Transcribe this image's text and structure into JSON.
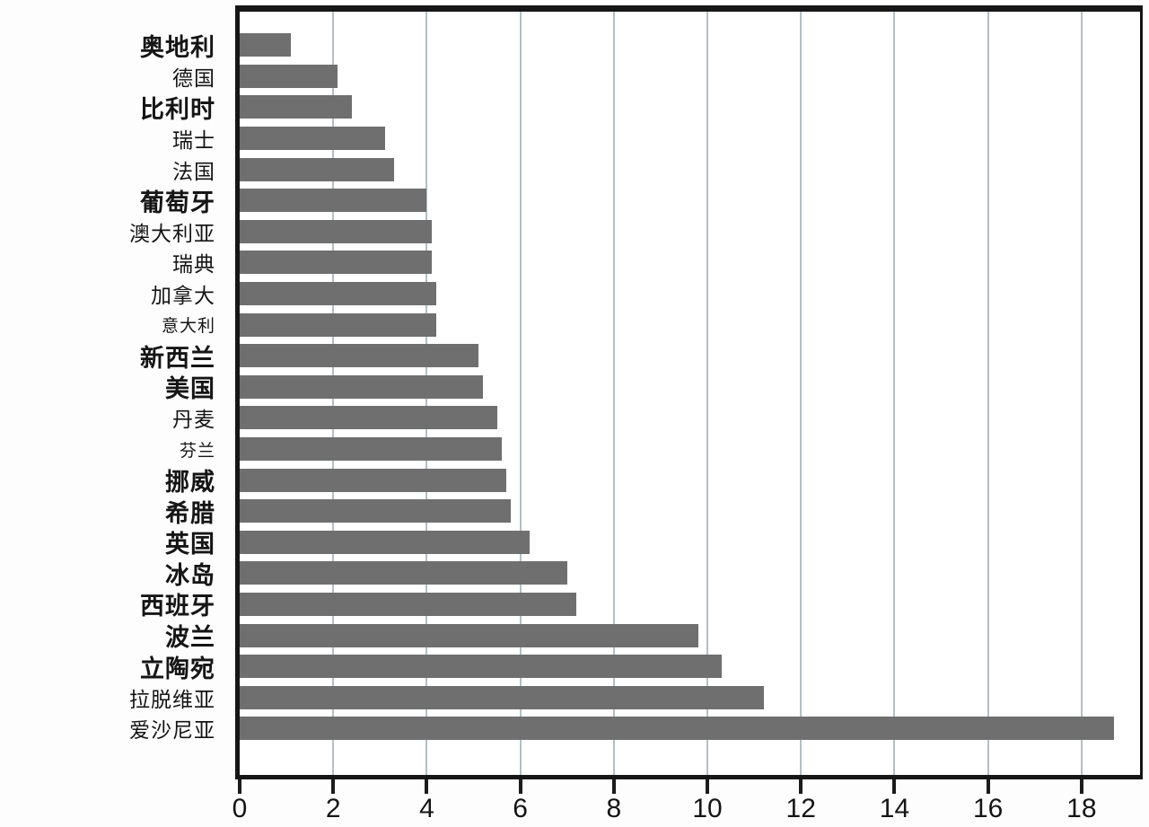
{
  "chart_data": {
    "type": "bar",
    "orientation": "horizontal",
    "title": "",
    "xlabel": "",
    "ylabel": "",
    "categories": [
      "奥地利",
      "德国",
      "比利时",
      "瑞士",
      "法国",
      "葡萄牙",
      "澳大利亚",
      "瑞典",
      "加拿大",
      "意大利",
      "新西兰",
      "美国",
      "丹麦",
      "芬兰",
      "挪威",
      "希腊",
      "英国",
      "冰岛",
      "西班牙",
      "波兰",
      "立陶宛",
      "拉脱维亚",
      "爱沙尼亚"
    ],
    "values": [
      1.1,
      2.1,
      2.4,
      3.1,
      3.3,
      4.0,
      4.1,
      4.1,
      4.2,
      4.2,
      5.1,
      5.2,
      5.5,
      5.6,
      5.7,
      5.8,
      6.2,
      7.0,
      7.2,
      9.8,
      10.3,
      11.2,
      18.7
    ],
    "label_sizes": [
      "l",
      "m",
      "l",
      "m",
      "m",
      "l",
      "m",
      "m",
      "m",
      "s",
      "l",
      "l",
      "m",
      "s",
      "l",
      "l",
      "l",
      "l",
      "l",
      "l",
      "l",
      "m",
      "m"
    ],
    "x_ticks": [
      0,
      2,
      4,
      6,
      8,
      10,
      12,
      14,
      16,
      18
    ],
    "xlim": [
      0,
      19.25
    ],
    "grid": "vertical",
    "legend": "none",
    "colors": {
      "bar": "#6f6f6f",
      "frame": "#161616",
      "gridline": "#b3bfc4",
      "tick_label": "#151515",
      "background": "#ffffff"
    }
  }
}
